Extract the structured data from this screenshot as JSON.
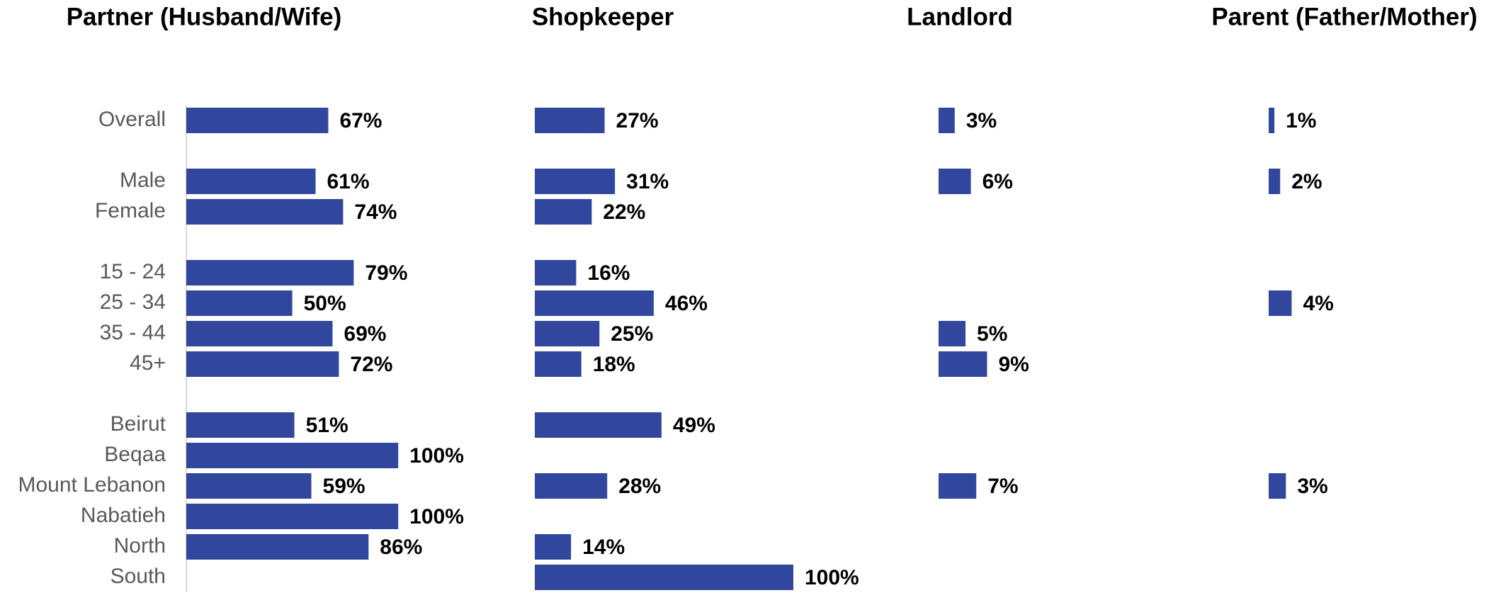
{
  "chart_data": {
    "type": "bar",
    "orientation": "horizontal",
    "categories": [
      "Overall",
      null,
      "Male",
      "Female",
      null,
      "15 - 24",
      "25 - 34",
      "35 - 44",
      "45+",
      null,
      "Beirut",
      "Beqaa",
      "Mount Lebanon",
      "Nabatieh",
      "North",
      "South"
    ],
    "series": [
      {
        "name": "Partner (Husband/Wife)",
        "color": "#31479e",
        "xlim": [
          0,
          122
        ],
        "values": [
          67,
          null,
          61,
          74,
          null,
          79,
          50,
          69,
          72,
          null,
          51,
          100,
          59,
          100,
          86,
          null
        ],
        "value_labels": [
          "67%",
          null,
          "61%",
          "74%",
          null,
          "79%",
          "50%",
          "69%",
          "72%",
          null,
          "51%",
          "100%",
          "59%",
          "100%",
          "86%",
          null
        ]
      },
      {
        "name": "Shopkeeper",
        "color": "#31479e",
        "xlim": [
          0,
          100
        ],
        "values": [
          27,
          null,
          31,
          22,
          null,
          16,
          46,
          25,
          18,
          null,
          49,
          null,
          28,
          null,
          14,
          100
        ],
        "value_labels": [
          "27%",
          null,
          "31%",
          "22%",
          null,
          "16%",
          "46%",
          "25%",
          "18%",
          null,
          "49%",
          null,
          "28%",
          null,
          "14%",
          "100%"
        ]
      },
      {
        "name": "Landlord",
        "color": "#31479e",
        "xlim": [
          0,
          48
        ],
        "values": [
          3,
          null,
          6,
          null,
          null,
          null,
          null,
          5,
          9,
          null,
          null,
          null,
          7,
          null,
          null,
          null
        ],
        "value_labels": [
          "3%",
          null,
          "6%",
          null,
          null,
          null,
          null,
          "5%",
          "9%",
          null,
          null,
          null,
          "7%",
          null,
          null,
          null
        ]
      },
      {
        "name": "Parent (Father/Mother)",
        "color": "#31479e",
        "xlim": [
          0,
          45
        ],
        "values": [
          1,
          null,
          2,
          null,
          null,
          null,
          4,
          null,
          null,
          null,
          null,
          null,
          3,
          null,
          null,
          null
        ],
        "value_labels": [
          "1%",
          null,
          "2%",
          null,
          null,
          null,
          "4%",
          null,
          null,
          null,
          null,
          null,
          "3%",
          null,
          null,
          null
        ]
      }
    ]
  }
}
